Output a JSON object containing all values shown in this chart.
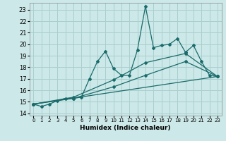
{
  "xlabel": "Humidex (Indice chaleur)",
  "bg_color": "#cce8e8",
  "grid_color": "#aacece",
  "line_color": "#1a6b6b",
  "xlim": [
    -0.5,
    23.5
  ],
  "ylim": [
    13.8,
    23.6
  ],
  "yticks": [
    14,
    15,
    16,
    17,
    18,
    19,
    20,
    21,
    22,
    23
  ],
  "xticks": [
    0,
    1,
    2,
    3,
    4,
    5,
    6,
    7,
    8,
    9,
    10,
    11,
    12,
    13,
    14,
    15,
    16,
    17,
    18,
    19,
    20,
    21,
    22,
    23
  ],
  "series": [
    [
      0,
      14.8,
      1,
      14.6,
      2,
      14.8,
      3,
      15.1,
      4,
      15.3,
      5,
      15.3,
      6,
      15.4,
      7,
      17.0,
      8,
      18.5,
      9,
      19.4,
      10,
      17.9,
      11,
      17.3,
      12,
      17.3,
      13,
      19.5,
      14,
      23.3,
      15,
      19.7,
      16,
      19.9,
      17,
      20.0,
      18,
      20.5,
      19,
      19.3,
      20,
      19.9,
      21,
      18.5,
      22,
      17.3,
      23,
      17.2
    ],
    [
      0,
      14.8,
      23,
      17.2
    ],
    [
      0,
      14.8,
      5,
      15.3,
      10,
      16.3,
      14,
      17.3,
      19,
      18.5,
      23,
      17.2
    ],
    [
      0,
      14.8,
      5,
      15.4,
      10,
      16.9,
      14,
      18.4,
      19,
      19.2,
      23,
      17.2
    ]
  ]
}
